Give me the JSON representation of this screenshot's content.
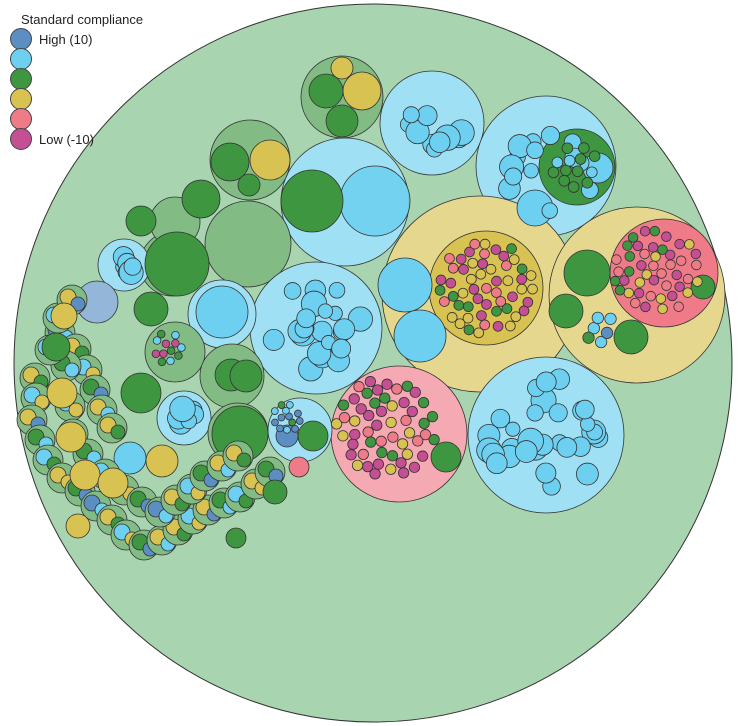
{
  "chart_data": {
    "type": "circle-packing",
    "legend": {
      "title": "Standard compliance",
      "placement": "top-left",
      "entries": [
        {
          "label": "High (10)",
          "color": "#5b8fc4"
        },
        {
          "label": "",
          "color": "#6dd0f0"
        },
        {
          "label": "",
          "color": "#3f9641"
        },
        {
          "label": "",
          "color": "#d8c252"
        },
        {
          "label": "",
          "color": "#ef7b88"
        },
        {
          "label": "Low (-10)",
          "color": "#c44f92"
        }
      ]
    },
    "colors": {
      "root_fill": "#a9d4b0",
      "group_fill": {
        "blue": "#5b8fc4",
        "light_blue": "#6dd0f0",
        "green": "#3f9641",
        "yellow": "#d8c252",
        "pink": "#ef7b88",
        "magenta": "#c44f92"
      }
    },
    "groups": [
      {
        "id": "g01",
        "color": "light_blue",
        "value": 120
      },
      {
        "id": "g02",
        "color": "yellow",
        "value": 150
      },
      {
        "id": "g03",
        "color": "yellow",
        "value": 150
      },
      {
        "id": "g04",
        "color": "pink",
        "value": 100
      },
      {
        "id": "g05",
        "color": "light_blue",
        "value": 110
      },
      {
        "id": "g06",
        "color": "light_blue",
        "value": 90
      },
      {
        "id": "g07",
        "color": "light_blue",
        "value": 75
      },
      {
        "id": "g08",
        "color": "light_blue",
        "value": 70
      },
      {
        "id": "g09",
        "color": "light_blue",
        "value": 60
      },
      {
        "id": "g10",
        "color": "green",
        "value": 40
      },
      {
        "id": "g11",
        "color": "green",
        "value": 40
      },
      {
        "id": "g12",
        "color": "green",
        "value": 40
      },
      {
        "id": "g13",
        "color": "green",
        "value": 30
      },
      {
        "id": "g14",
        "color": "green",
        "value": 25
      },
      {
        "id": "g15",
        "color": "light_blue",
        "value": 25
      }
    ]
  }
}
